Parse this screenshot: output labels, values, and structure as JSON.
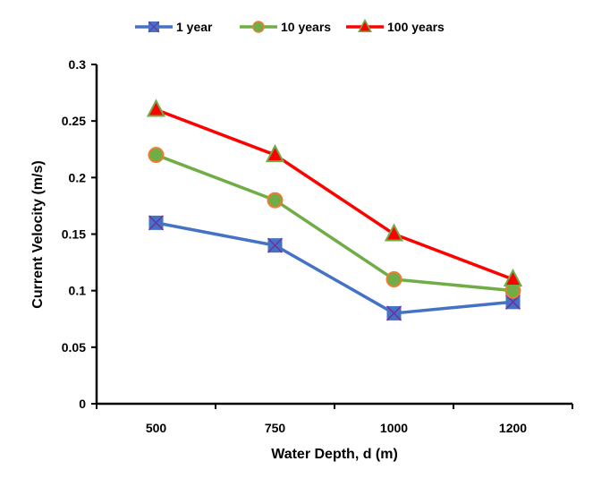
{
  "chart_data": {
    "type": "line",
    "title": "",
    "xlabel": "Water Depth, d (m)",
    "ylabel": "Current Velocity (m/s)",
    "categories": [
      "500",
      "750",
      "1000",
      "1200"
    ],
    "ylim": [
      0,
      0.3
    ],
    "yticks": [
      0,
      0.05,
      0.1,
      0.15,
      0.2,
      0.25,
      0.3
    ],
    "ytick_labels": [
      "0",
      "0.05",
      "0.1",
      "0.15",
      "0.2",
      "0.25",
      "0.3"
    ],
    "grid": false,
    "legend_position": "top",
    "series": [
      {
        "name": "1 year",
        "values": [
          0.16,
          0.14,
          0.08,
          0.09
        ],
        "color": "#4472C4",
        "marker": "square-x",
        "marker_fill": "#4472C4",
        "marker_edge": "#7030A0"
      },
      {
        "name": "10 years",
        "values": [
          0.22,
          0.18,
          0.11,
          0.1
        ],
        "color": "#70AD47",
        "marker": "circle",
        "marker_fill": "#70AD47",
        "marker_edge": "#ED7D31"
      },
      {
        "name": "100 years",
        "values": [
          0.26,
          0.22,
          0.15,
          0.11
        ],
        "color": "#FF0000",
        "marker": "triangle",
        "marker_fill": "#FF0000",
        "marker_edge": "#70AD47"
      }
    ]
  }
}
